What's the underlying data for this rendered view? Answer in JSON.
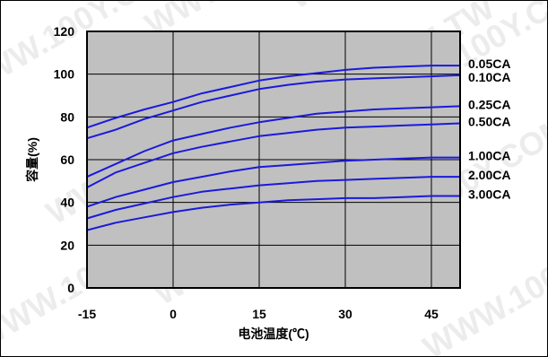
{
  "watermark": "WWW.100Y.COM.TW",
  "colors": {
    "plot_background": "#c0c0c0",
    "series_line": "#1a1adc",
    "grid": "#000000",
    "frame": "#000000"
  },
  "chart_data": {
    "type": "line",
    "title": "",
    "xlabel": "电池温度(℃)",
    "ylabel": "容量(%)",
    "xlim": [
      -15,
      50
    ],
    "ylim": [
      0,
      120
    ],
    "x_ticks": [
      "-15",
      "0",
      "15",
      "30",
      "45"
    ],
    "y_ticks": [
      "0",
      "20",
      "40",
      "60",
      "80",
      "100",
      "120"
    ],
    "grid": true,
    "legend": "right-edge labels",
    "series": [
      {
        "name": "0.05CA",
        "x": [
          -15,
          -10,
          -5,
          0,
          5,
          10,
          15,
          20,
          25,
          30,
          35,
          40,
          45,
          50
        ],
        "y": [
          75,
          79.5,
          83.5,
          87,
          91,
          94,
          97,
          99,
          100.5,
          102,
          103,
          103.5,
          104,
          104
        ]
      },
      {
        "name": "0.10CA",
        "x": [
          -15,
          -10,
          -5,
          0,
          5,
          10,
          15,
          20,
          25,
          30,
          35,
          40,
          45,
          50
        ],
        "y": [
          70,
          74,
          79,
          83,
          87,
          90,
          93,
          95,
          96.5,
          97.5,
          98,
          98.5,
          99,
          99.5
        ]
      },
      {
        "name": "0.25CA",
        "x": [
          -15,
          -10,
          -5,
          0,
          5,
          10,
          15,
          20,
          25,
          30,
          35,
          40,
          45,
          50
        ],
        "y": [
          52,
          58,
          64,
          69,
          72,
          75,
          77.5,
          79.5,
          81.5,
          82.5,
          83.5,
          84,
          84.5,
          85
        ]
      },
      {
        "name": "0.50CA",
        "x": [
          -15,
          -10,
          -5,
          0,
          5,
          10,
          15,
          20,
          25,
          30,
          35,
          40,
          45,
          50
        ],
        "y": [
          47,
          54,
          58.5,
          63,
          66,
          68.5,
          71,
          72.5,
          74,
          75,
          75.5,
          76,
          76.5,
          77
        ]
      },
      {
        "name": "1.00CA",
        "x": [
          -15,
          -10,
          -5,
          0,
          5,
          10,
          15,
          20,
          25,
          30,
          35,
          40,
          45,
          50
        ],
        "y": [
          38,
          42.5,
          46,
          49.5,
          52,
          54.5,
          56.5,
          57.5,
          58.5,
          59.5,
          60,
          60.5,
          61,
          61
        ]
      },
      {
        "name": "2.00CA",
        "x": [
          -15,
          -10,
          -5,
          0,
          5,
          10,
          15,
          20,
          25,
          30,
          35,
          40,
          45,
          50
        ],
        "y": [
          32.5,
          36.5,
          39.5,
          42.5,
          45,
          46.5,
          48,
          49,
          50,
          50.5,
          51,
          51.5,
          52,
          52
        ]
      },
      {
        "name": "3.00CA",
        "x": [
          -15,
          -10,
          -5,
          0,
          5,
          10,
          15,
          20,
          25,
          30,
          35,
          40,
          45,
          50
        ],
        "y": [
          27,
          30.5,
          33,
          35.5,
          37.5,
          39,
          40,
          41,
          41.5,
          42,
          42,
          42.5,
          43,
          43
        ]
      }
    ]
  }
}
